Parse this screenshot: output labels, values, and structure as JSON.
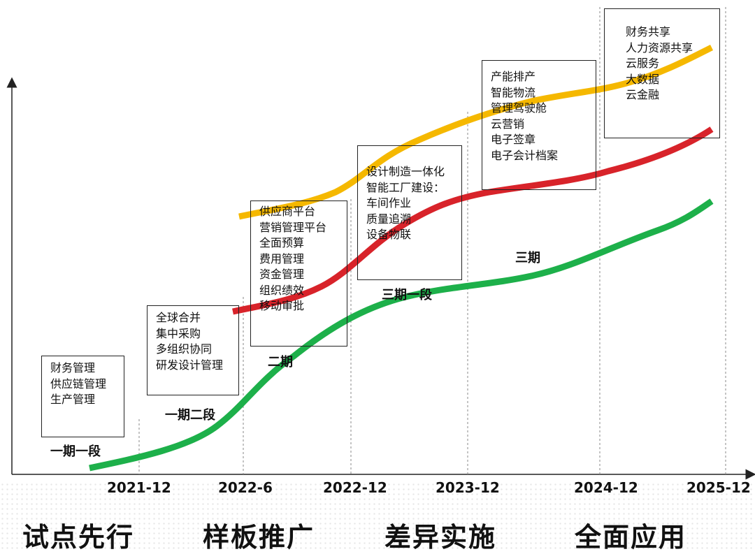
{
  "boxes": [
    {
      "items": [
        "财务管理",
        "供应链管理",
        "生产管理"
      ]
    },
    {
      "items": [
        "全球合并",
        "集中采购",
        "多组织协同",
        "研发设计管理"
      ]
    },
    {
      "items": [
        "供应商平台",
        "营销管理平台",
        "全面预算",
        "费用管理",
        "资金管理",
        "组织绩效",
        "移动审批"
      ]
    },
    {
      "items": [
        "设计制造一体化",
        "智能工厂建设：",
        "车间作业",
        "质量追溯",
        "设备物联"
      ]
    },
    {
      "items": [
        "产能排产",
        "智能物流",
        "管理驾驶舱",
        "云营销",
        "电子签章",
        "电子会计档案"
      ]
    },
    {
      "items": [
        "财务共享",
        "人力资源共享",
        "云服务",
        "大数据",
        "云金融"
      ]
    }
  ],
  "stage_labels": [
    "一期一段",
    "一期二段",
    "二期",
    "三期一段",
    "三期"
  ],
  "dates": [
    "2021-12",
    "2022-6",
    "2022-12",
    "2023-12",
    "2024-12",
    "2025-12"
  ],
  "phases": [
    "试点先行",
    "样板推广",
    "差异实施",
    "全面应用"
  ],
  "colors": {
    "green_curve": "#1db04a",
    "red_curve": "#d8232a",
    "yellow_curve": "#f5b800",
    "axis": "#222222"
  }
}
